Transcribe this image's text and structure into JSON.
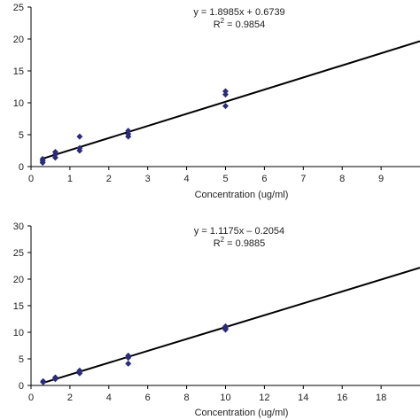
{
  "chart_data": [
    {
      "type": "scatter",
      "xlabel": "Concentration (ug/ml)",
      "ylabel": "",
      "xlim": [
        0,
        10
      ],
      "ylim": [
        0,
        25
      ],
      "xticks": [
        "0",
        "1",
        "2",
        "3",
        "4",
        "5",
        "6",
        "7",
        "8",
        "9"
      ],
      "yticks": [
        "0",
        "5",
        "10",
        "15",
        "20",
        "25"
      ],
      "series": [
        {
          "points": [
            [
              0.3,
              0.6
            ],
            [
              0.3,
              0.9
            ],
            [
              0.3,
              1.2
            ],
            [
              0.625,
              1.4
            ],
            [
              0.625,
              1.9
            ],
            [
              0.625,
              2.3
            ],
            [
              1.25,
              2.5
            ],
            [
              1.25,
              2.9
            ],
            [
              1.25,
              4.7
            ],
            [
              2.5,
              4.7
            ],
            [
              2.5,
              5.1
            ],
            [
              2.5,
              5.6
            ],
            [
              5,
              9.5
            ],
            [
              5,
              11.3
            ],
            [
              5,
              11.8
            ]
          ]
        }
      ],
      "trendline": {
        "slope": 1.8985,
        "intercept": 0.6739,
        "x_range": [
          0.25,
          10
        ]
      },
      "equation": "y = 1.8985x + 0.6739",
      "r2_prefix": "R",
      "r2_sup": "2",
      "r2_value": " = 0.9854"
    },
    {
      "type": "scatter",
      "xlabel": "Concentration (ug/ml)",
      "ylabel": "",
      "xlim": [
        0,
        20
      ],
      "ylim": [
        0,
        30
      ],
      "xticks": [
        "0",
        "2",
        "4",
        "6",
        "8",
        "10",
        "12",
        "14",
        "16",
        "18"
      ],
      "yticks": [
        "0",
        "5",
        "10",
        "15",
        "20",
        "25",
        "30"
      ],
      "series": [
        {
          "points": [
            [
              0.625,
              0.6
            ],
            [
              0.625,
              0.8
            ],
            [
              1.25,
              1.2
            ],
            [
              1.25,
              1.5
            ],
            [
              2.5,
              2.3
            ],
            [
              2.5,
              2.6
            ],
            [
              2.5,
              2.8
            ],
            [
              5,
              4.1
            ],
            [
              5,
              5.2
            ],
            [
              5,
              5.6
            ],
            [
              10,
              10.5
            ],
            [
              10,
              10.8
            ],
            [
              10,
              11.1
            ]
          ]
        }
      ],
      "trendline": {
        "slope": 1.1175,
        "intercept": -0.2054,
        "x_range": [
          0.55,
          20
        ]
      },
      "equation": "y = 1.1175x – 0.2054",
      "r2_prefix": "R",
      "r2_sup": "2",
      "r2_value": " = 0.9885"
    }
  ],
  "colors": {
    "marker": "#2b2b7a",
    "trendline": "#000000",
    "axis": "#000000"
  }
}
